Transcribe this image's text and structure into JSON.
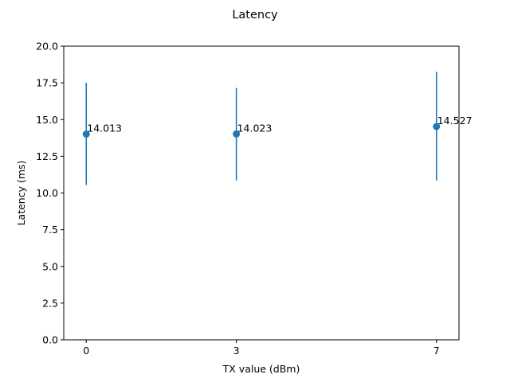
{
  "chart_data": {
    "type": "scatter",
    "title": "Latency",
    "xlabel": "TX value (dBm)",
    "ylabel": "Latency (ms)",
    "categories": [
      "0",
      "3",
      "7"
    ],
    "x": [
      0,
      3,
      7
    ],
    "values": [
      14.013,
      14.023,
      14.527
    ],
    "error_low": [
      10.55,
      10.85,
      10.85
    ],
    "error_high": [
      17.5,
      17.15,
      18.25
    ],
    "data_labels": [
      "14.013",
      "14.023",
      "14.527"
    ],
    "ylim": [
      0,
      20
    ],
    "yticks": [
      "0.0",
      "2.5",
      "5.0",
      "7.5",
      "10.0",
      "12.5",
      "15.0",
      "17.5",
      "20.0"
    ],
    "grid": false,
    "legend": "none",
    "color": "#1f77b4"
  }
}
